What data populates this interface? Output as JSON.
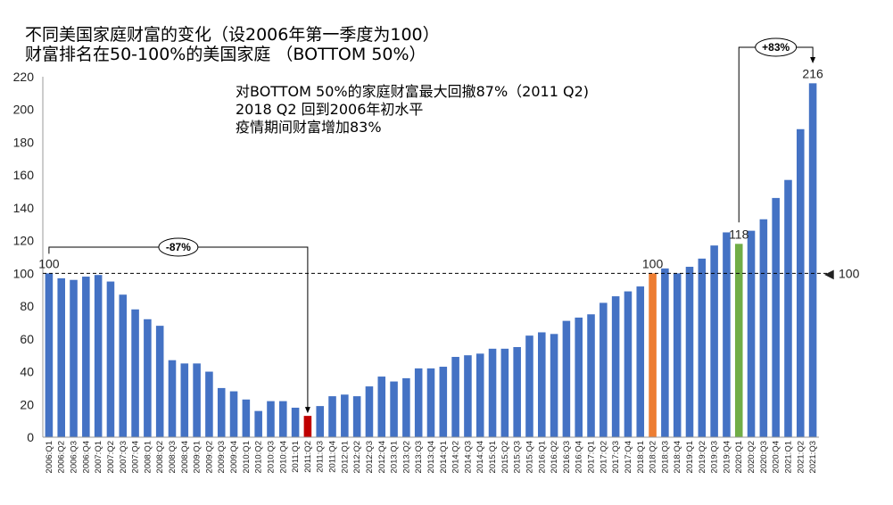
{
  "chart_data": {
    "type": "bar",
    "title": "不同美国家庭财富的变化（设2006年第一季度为100）",
    "subtitle": "财富排名在50-100%的美国家庭 （BOTTOM 50%）",
    "annotations": [
      "对BOTTOM 50%的家庭财富最大回撤87%（2011 Q2)",
      "2018 Q2 回到2006年初水平",
      "疫情期间财富增加83%"
    ],
    "ylim": [
      0,
      220
    ],
    "yticks": [
      0,
      20,
      40,
      60,
      80,
      100,
      120,
      140,
      160,
      180,
      200,
      220
    ],
    "reference_line": {
      "value": 100,
      "label": "100",
      "marker": "◀"
    },
    "drawdown_label": "-87%",
    "increase_label": "+83%",
    "colors": {
      "default": "#4472C4",
      "low": "#C00000",
      "recovery": "#ED7D31",
      "covid": "#70AD47"
    },
    "categories": [
      "2006Q1",
      "2006Q2",
      "2006Q3",
      "2006Q4",
      "2007Q1",
      "2007Q2",
      "2007Q3",
      "2007Q4",
      "2008Q1",
      "2008Q2",
      "2008Q3",
      "2008Q4",
      "2009Q1",
      "2009Q2",
      "2009Q3",
      "2009Q4",
      "2010Q1",
      "2010Q2",
      "2010Q3",
      "2010Q4",
      "2011Q1",
      "2011Q2",
      "2011Q3",
      "2011Q4",
      "2012Q1",
      "2012Q2",
      "2012Q3",
      "2012Q4",
      "2013Q1",
      "2013Q2",
      "2013Q3",
      "2013Q4",
      "2014Q1",
      "2014Q2",
      "2014Q3",
      "2014Q4",
      "2015Q1",
      "2015Q2",
      "2015Q3",
      "2015Q4",
      "2016Q1",
      "2016Q2",
      "2016Q3",
      "2016Q4",
      "2017Q1",
      "2017Q2",
      "2017Q3",
      "2017Q4",
      "2018Q1",
      "2018Q2",
      "2018Q3",
      "2018Q4",
      "2019Q1",
      "2019Q2",
      "2019Q3",
      "2019Q4",
      "2020Q1",
      "2020Q2",
      "2020Q3",
      "2020Q4",
      "2021Q1",
      "2021Q2",
      "2021Q3"
    ],
    "values": [
      100,
      97,
      96,
      98,
      99,
      95,
      87,
      78,
      72,
      68,
      47,
      45,
      45,
      40,
      30,
      28,
      23,
      16,
      22,
      22,
      18,
      13,
      19,
      25,
      26,
      25,
      31,
      37,
      34,
      36,
      42,
      42,
      43,
      49,
      50,
      51,
      54,
      54,
      55,
      62,
      64,
      63,
      71,
      73,
      75,
      82,
      86,
      89,
      92,
      100,
      103,
      100,
      104,
      109,
      117,
      125,
      118,
      126,
      133,
      146,
      157,
      188,
      216
    ],
    "highlights": {
      "2011Q2": "low",
      "2018Q2": "recovery",
      "2020Q1": "covid"
    },
    "value_labels": {
      "2006Q1": "100",
      "2018Q2": "100",
      "2020Q1": "118",
      "2021Q3": "216"
    }
  }
}
